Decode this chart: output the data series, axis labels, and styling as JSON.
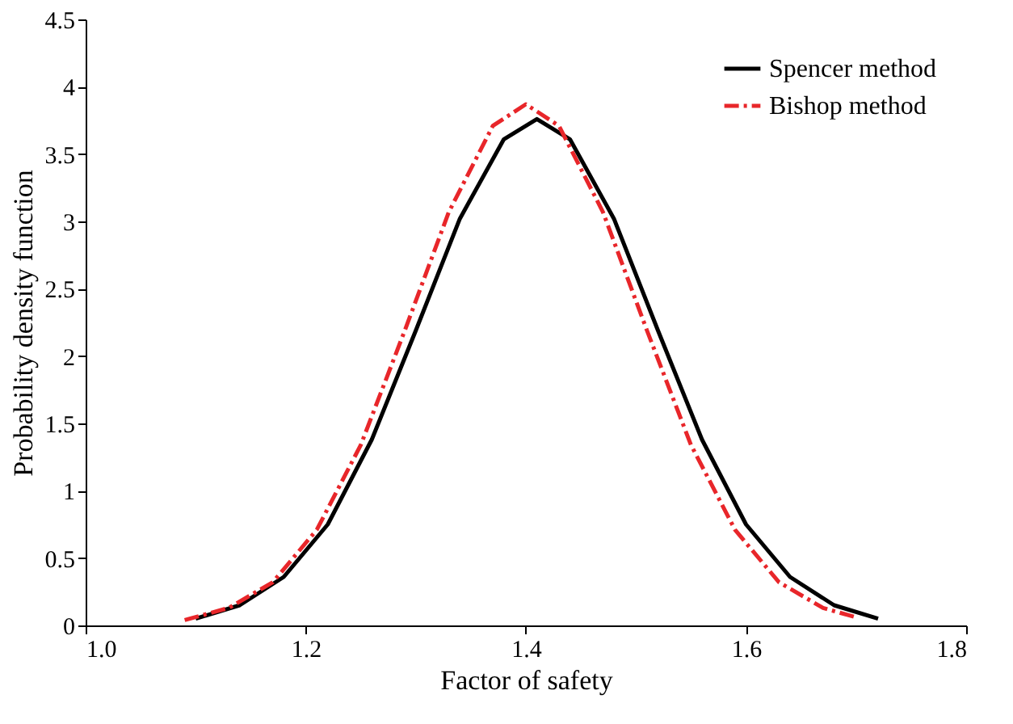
{
  "chart_data": {
    "type": "line",
    "xlabel": "Factor of safety",
    "ylabel": "Probability density function",
    "xlim": [
      1.0,
      1.8
    ],
    "xticks": [
      {
        "value": 1.0,
        "label": "1.0"
      },
      {
        "value": 1.2,
        "label": "1.2"
      },
      {
        "value": 1.4,
        "label": "1.4"
      },
      {
        "value": 1.6,
        "label": "1.6"
      },
      {
        "value": 1.8,
        "label": "1.8"
      }
    ],
    "ylim": [
      0,
      4.5
    ],
    "yticks": [
      0,
      0.5,
      1,
      1.5,
      2,
      2.5,
      3,
      3.5,
      4,
      4.5
    ],
    "grid": false,
    "legend": "top right",
    "marker": "none",
    "series": [
      {
        "name": "Spencer method",
        "color": "#000000",
        "line_style": "solid",
        "x": [
          1.1,
          1.14,
          1.18,
          1.22,
          1.26,
          1.3,
          1.34,
          1.38,
          1.41,
          1.44,
          1.48,
          1.52,
          1.56,
          1.6,
          1.64,
          1.68,
          1.72
        ],
        "values": [
          0.05,
          0.15,
          0.36,
          0.75,
          1.38,
          2.19,
          3.02,
          3.61,
          3.76,
          3.61,
          3.02,
          2.19,
          1.38,
          0.75,
          0.36,
          0.15,
          0.05
        ]
      },
      {
        "name": "Bishop method",
        "color": "#e8262a",
        "line_style": "dashed",
        "x": [
          1.09,
          1.13,
          1.17,
          1.21,
          1.25,
          1.29,
          1.33,
          1.37,
          1.4,
          1.43,
          1.47,
          1.51,
          1.55,
          1.59,
          1.63,
          1.67,
          1.7
        ],
        "values": [
          0.04,
          0.13,
          0.32,
          0.71,
          1.34,
          2.19,
          3.07,
          3.71,
          3.87,
          3.71,
          3.07,
          2.19,
          1.34,
          0.71,
          0.32,
          0.13,
          0.06
        ]
      }
    ]
  }
}
